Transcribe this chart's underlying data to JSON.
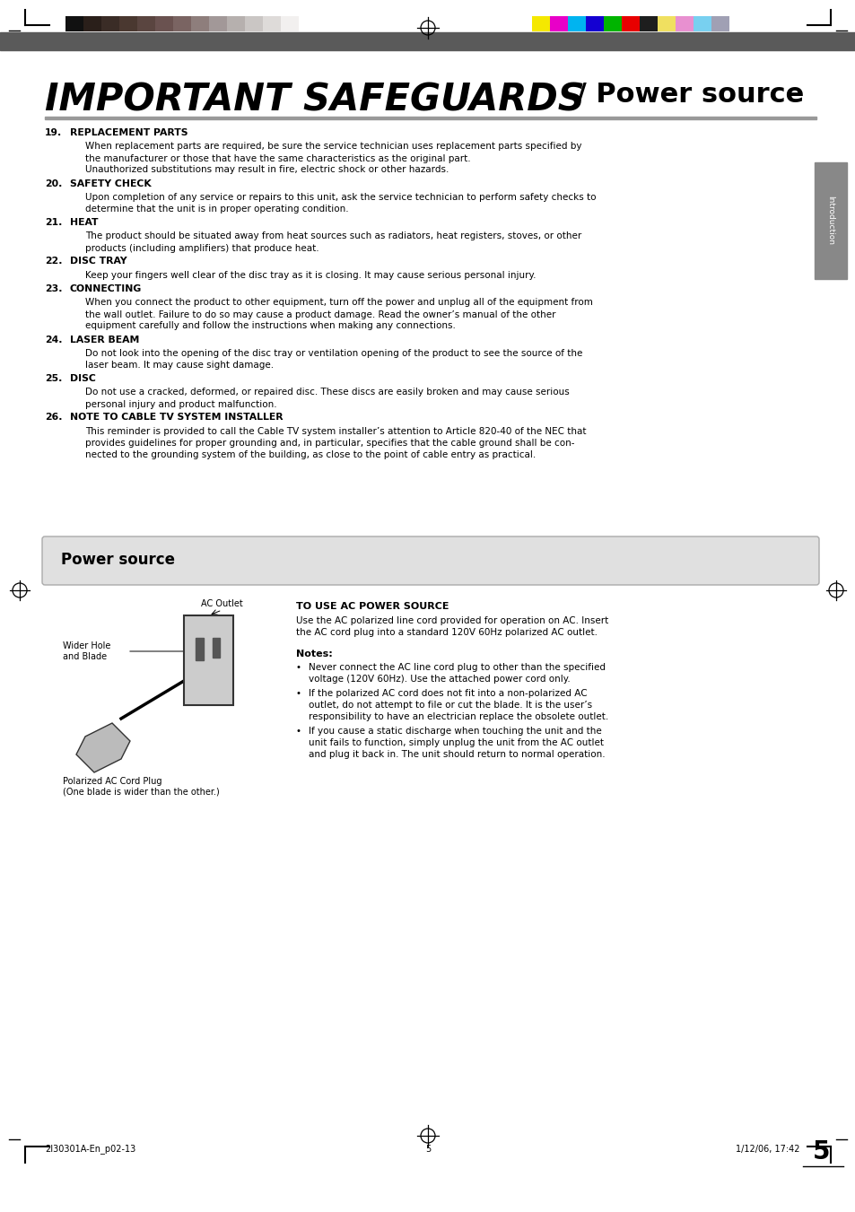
{
  "page_bg": "#ffffff",
  "header_bar_colors_left": [
    "#111111",
    "#2a1f1a",
    "#3a2c26",
    "#4a3830",
    "#5a4540",
    "#6a5250",
    "#7a6462",
    "#8e7e7c",
    "#a29898",
    "#b6b0ae",
    "#cac6c4",
    "#dedbd9",
    "#f2f0ef"
  ],
  "header_bar_colors_right": [
    "#f5e800",
    "#e800c8",
    "#00b4f0",
    "#1400d2",
    "#00b400",
    "#e80000",
    "#1e1e1e",
    "#f0e060",
    "#e890d0",
    "#78d0f0",
    "#a0a0b4"
  ],
  "title_bold": "IMPORTANT SAFEGUARDS",
  "title_slash": " / ",
  "title_normal": "Power source",
  "section_box_title": "Power source",
  "items": [
    {
      "num": "19.",
      "head": "REPLACEMENT PARTS",
      "body": [
        "When replacement parts are required, be sure the service technician uses replacement parts specified by",
        "the manufacturer or those that have the same characteristics as the original part.",
        "Unauthorized substitutions may result in fire, electric shock or other hazards."
      ]
    },
    {
      "num": "20.",
      "head": "SAFETY CHECK",
      "body": [
        "Upon completion of any service or repairs to this unit, ask the service technician to perform safety checks to",
        "determine that the unit is in proper operating condition."
      ]
    },
    {
      "num": "21.",
      "head": "HEAT",
      "body": [
        "The product should be situated away from heat sources such as radiators, heat registers, stoves, or other",
        "products (including amplifiers) that produce heat."
      ]
    },
    {
      "num": "22.",
      "head": "DISC TRAY",
      "body": [
        "Keep your fingers well clear of the disc tray as it is closing. It may cause serious personal injury."
      ]
    },
    {
      "num": "23.",
      "head": "CONNECTING",
      "body": [
        "When you connect the product to other equipment, turn off the power and unplug all of the equipment from",
        "the wall outlet. Failure to do so may cause a product damage. Read the owner’s manual of the other",
        "equipment carefully and follow the instructions when making any connections."
      ]
    },
    {
      "num": "24.",
      "head": "LASER BEAM",
      "body": [
        "Do not look into the opening of the disc tray or ventilation opening of the product to see the source of the",
        "laser beam. It may cause sight damage."
      ]
    },
    {
      "num": "25.",
      "head": "DISC",
      "body": [
        "Do not use a cracked, deformed, or repaired disc. These discs are easily broken and may cause serious",
        "personal injury and product malfunction."
      ]
    },
    {
      "num": "26.",
      "head": "NOTE TO CABLE TV SYSTEM INSTALLER",
      "body": [
        "This reminder is provided to call the Cable TV system installer’s attention to Article 820-40 of the NEC that",
        "provides guidelines for proper grounding and, in particular, specifies that the cable ground shall be con-",
        "nected to the grounding system of the building, as close to the point of cable entry as practical."
      ]
    }
  ],
  "power_source_title": "TO USE AC POWER SOURCE",
  "power_source_body": [
    "Use the AC polarized line cord provided for operation on AC. Insert",
    "the AC cord plug into a standard 120V 60Hz polarized AC outlet."
  ],
  "notes_title": "Notes:",
  "notes_bullets": [
    [
      "Never connect the AC line cord plug to other than the specified",
      "voltage (120V 60Hz). Use the attached power cord only."
    ],
    [
      "If the polarized AC cord does not fit into a non-polarized AC",
      "outlet, do not attempt to file or cut the blade. It is the user’s",
      "responsibility to have an electrician replace the obsolete outlet."
    ],
    [
      "If you cause a static discharge when touching the unit and the",
      "unit fails to function, simply unplug the unit from the AC outlet",
      "and plug it back in. The unit should return to normal operation."
    ]
  ],
  "ac_outlet_label": "AC Outlet",
  "wider_hole_label": "Wider Hole\nand Blade",
  "polarized_label": "Polarized AC Cord Plug\n(One blade is wider than the other.)",
  "footer_left": "2I30301A-En_p02-13",
  "footer_center": "5",
  "footer_right": "1/12/06, 17:42",
  "page_number": "5"
}
